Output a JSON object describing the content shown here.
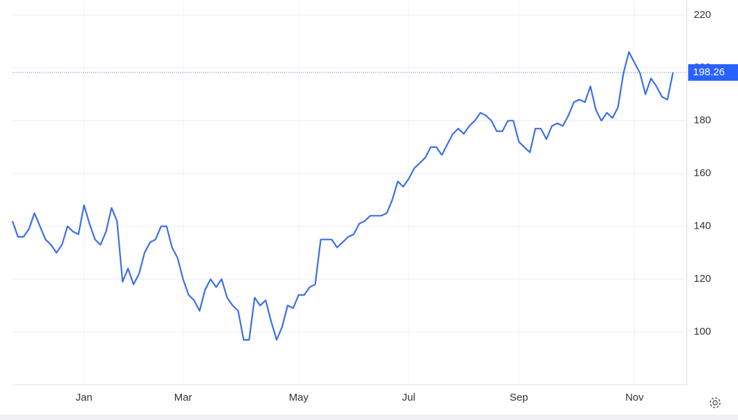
{
  "chart_data": {
    "type": "line",
    "categories": [
      null,
      null,
      null,
      null,
      null,
      null,
      null,
      null,
      null,
      null,
      null,
      null,
      null,
      "Jan",
      null,
      null,
      null,
      null,
      null,
      null,
      null,
      null,
      null,
      null,
      null,
      null,
      null,
      null,
      null,
      null,
      null,
      "Mar",
      null,
      null,
      null,
      null,
      null,
      null,
      null,
      null,
      null,
      null,
      null,
      null,
      null,
      null,
      null,
      null,
      null,
      null,
      null,
      null,
      "May",
      null,
      null,
      null,
      null,
      null,
      null,
      null,
      null,
      null,
      null,
      null,
      null,
      null,
      null,
      null,
      null,
      null,
      null,
      null,
      "Jul",
      null,
      null,
      null,
      null,
      null,
      null,
      null,
      null,
      null,
      null,
      null,
      null,
      null,
      null,
      null,
      null,
      null,
      null,
      null,
      "Sep",
      null,
      null,
      null,
      null,
      null,
      null,
      null,
      null,
      null,
      null,
      null,
      null,
      null,
      null,
      null,
      null,
      null,
      null,
      null,
      null,
      "Nov",
      null,
      null,
      null,
      null,
      null,
      null,
      null
    ],
    "series": [
      {
        "color": "#3a6ee8",
        "values": [
          142,
          136,
          136,
          139,
          145,
          140,
          135,
          133,
          130,
          133,
          140,
          138,
          137,
          148,
          141,
          135,
          133,
          138,
          147,
          142,
          119,
          124,
          118,
          122,
          130,
          134,
          135,
          140,
          140,
          132,
          128,
          120,
          114,
          112,
          108,
          116,
          120,
          117,
          120,
          113,
          110,
          108,
          97,
          97,
          113,
          110,
          112,
          104,
          97,
          102,
          110,
          109,
          114,
          114,
          117,
          118,
          135,
          135,
          135,
          132,
          134,
          136,
          137,
          141,
          142,
          144,
          144,
          144,
          145,
          150,
          157,
          155,
          158,
          162,
          164,
          166,
          170,
          170,
          167,
          171,
          175,
          177,
          175,
          178,
          180,
          183,
          182,
          180,
          176,
          176,
          180,
          180,
          172,
          170,
          168,
          177,
          177,
          173,
          178,
          179,
          178,
          182,
          187,
          188,
          187,
          193,
          184,
          180,
          183,
          181,
          185,
          198,
          206,
          202,
          198,
          190,
          196,
          193,
          189,
          188,
          198.26
        ]
      }
    ],
    "ylim": [
      80,
      225.7
    ],
    "yticks": [
      100,
      120,
      140,
      160,
      180,
      200,
      220
    ],
    "grid": true
  }
}
